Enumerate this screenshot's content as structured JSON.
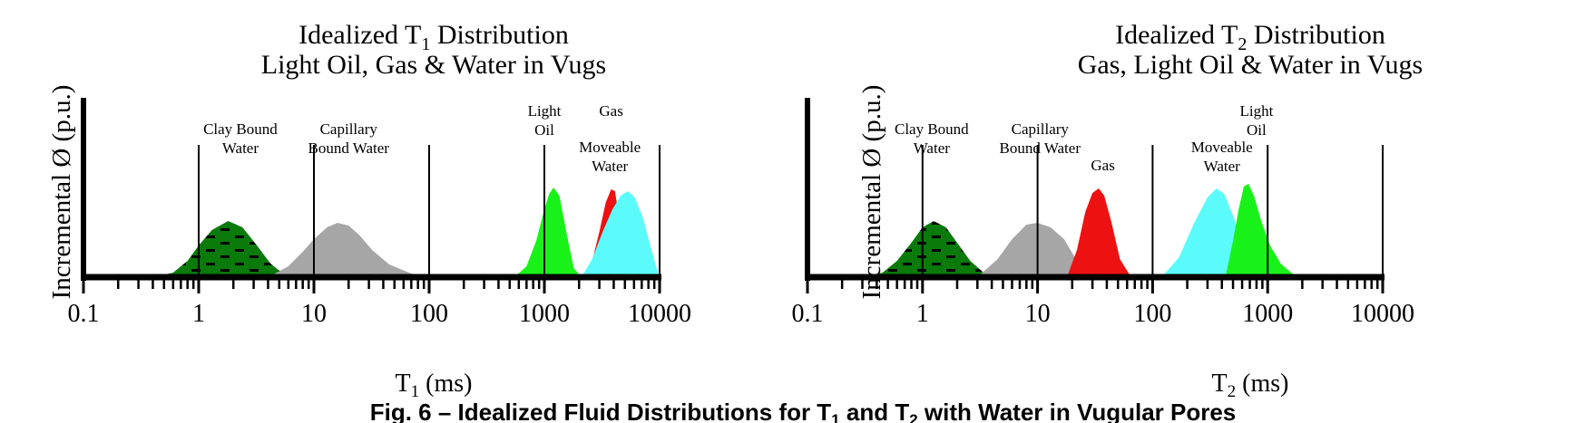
{
  "caption": {
    "prefix": "Fig. 6 – Idealized Fluid Distributions for T",
    "sub1": "1",
    "mid": " and T",
    "sub2": "2",
    "suffix": " with Water in Vugular Pores"
  },
  "chart_data": [
    {
      "type": "area",
      "title": {
        "line1_pre": "Idealized T",
        "line1_sub": "1",
        "line1_post": " Distribution",
        "line2": "Light Oil,  Gas  & Water in Vugs"
      },
      "ylabel": "Incremental Ø (p.u.)",
      "xlabel": {
        "pre": "T",
        "sub": "1",
        "post": "  (ms)"
      },
      "xscale": "log",
      "xlim": [
        0.1,
        10000
      ],
      "ylim": [
        0,
        1
      ],
      "x_ticks": [
        0.1,
        1,
        10,
        100,
        1000,
        10000
      ],
      "x_tick_labels": [
        "0.1",
        "1",
        "10",
        "100",
        "1000",
        "10000"
      ],
      "cutoffs": [
        1,
        10,
        100,
        1000,
        10000
      ],
      "series": [
        {
          "name": "Clay Bound Water",
          "color": "#0a7a0a",
          "pattern": "dashes",
          "x": [
            0.4,
            0.6,
            0.8,
            1,
            1.3,
            1.8,
            2.4,
            3.2,
            4.2,
            5.5,
            7
          ],
          "y": [
            0,
            0.05,
            0.18,
            0.35,
            0.52,
            0.62,
            0.55,
            0.35,
            0.15,
            0.03,
            0
          ]
        },
        {
          "name": "Capillary Bound Water",
          "color": "#a6a6a6",
          "x": [
            4,
            6,
            8,
            10,
            13,
            16,
            20,
            25,
            32,
            45,
            70,
            100
          ],
          "y": [
            0,
            0.12,
            0.28,
            0.42,
            0.55,
            0.6,
            0.57,
            0.46,
            0.3,
            0.14,
            0.04,
            0
          ]
        },
        {
          "name": "Light Oil",
          "color": "#19f219",
          "x": [
            550,
            700,
            850,
            1000,
            1100,
            1200,
            1350,
            1550,
            1800,
            2100
          ],
          "y": [
            0,
            0.12,
            0.4,
            0.75,
            0.92,
            0.99,
            0.9,
            0.5,
            0.1,
            0
          ]
        },
        {
          "name": "Gas",
          "color": "#ee1111",
          "x": [
            2300,
            2600,
            3000,
            3400,
            3800,
            4100,
            4400,
            4800,
            5200
          ],
          "y": [
            0,
            0.18,
            0.5,
            0.82,
            0.97,
            0.95,
            0.7,
            0.3,
            0
          ]
        },
        {
          "name": "Moveable Water",
          "color": "#5cfbfb",
          "x": [
            2100,
            2600,
            3200,
            3900,
            4600,
            5300,
            6100,
            7200,
            8300,
            9400,
            10000
          ],
          "y": [
            0,
            0.2,
            0.5,
            0.75,
            0.9,
            0.95,
            0.88,
            0.65,
            0.35,
            0.1,
            0
          ]
        }
      ],
      "annotations": [
        {
          "lines": [
            "Clay Bound",
            "Water"
          ],
          "x": 2.3,
          "level": 1
        },
        {
          "lines": [
            "Capillary",
            "Bound Water"
          ],
          "x": 20,
          "level": 1
        },
        {
          "lines": [
            "Light",
            "Oil"
          ],
          "x": 1000,
          "level": 0
        },
        {
          "lines": [
            "Gas"
          ],
          "x": 3800,
          "level": 0
        },
        {
          "lines": [
            "Moveable",
            "Water"
          ],
          "x": 3700,
          "level": 2
        }
      ]
    },
    {
      "type": "area",
      "title": {
        "line1_pre": "Idealized T",
        "line1_sub": "2",
        "line1_post": " Distribution",
        "line2": "Gas,  Light Oil  &  Water in Vugs"
      },
      "ylabel": "Incremental Ø (p.u.)",
      "xlabel": {
        "pre": "T",
        "sub": "2",
        "post": "  (ms)"
      },
      "xscale": "log",
      "xlim": [
        0.1,
        10000
      ],
      "ylim": [
        0,
        1
      ],
      "x_ticks": [
        0.1,
        1,
        10,
        100,
        1000,
        10000
      ],
      "x_tick_labels": [
        "0.1",
        "1",
        "10",
        "100",
        "1000",
        "10000"
      ],
      "cutoffs": [
        1,
        10,
        100,
        1000,
        10000
      ],
      "series": [
        {
          "name": "Clay Bound Water",
          "color": "#0a7a0a",
          "pattern": "dashes",
          "x": [
            0.3,
            0.45,
            0.6,
            0.8,
            1,
            1.25,
            1.6,
            2,
            2.6,
            3.4,
            4.5,
            5.5
          ],
          "y": [
            0,
            0.05,
            0.18,
            0.38,
            0.55,
            0.62,
            0.55,
            0.38,
            0.18,
            0.05,
            0,
            0
          ]
        },
        {
          "name": "Capillary Bound Water",
          "color": "#a6a6a6",
          "x": [
            3,
            4.5,
            6,
            8,
            10,
            13,
            17,
            22,
            28
          ],
          "y": [
            0,
            0.2,
            0.42,
            0.58,
            0.6,
            0.55,
            0.42,
            0.18,
            0
          ]
        },
        {
          "name": "Gas",
          "color": "#ee1111",
          "x": [
            18,
            22,
            26,
            30,
            34,
            38,
            44,
            52,
            65
          ],
          "y": [
            0,
            0.3,
            0.72,
            0.93,
            0.98,
            0.9,
            0.6,
            0.2,
            0
          ]
        },
        {
          "name": "Moveable Water",
          "color": "#5cfbfb",
          "x": [
            120,
            170,
            230,
            300,
            360,
            420,
            500,
            620,
            760,
            900
          ],
          "y": [
            0,
            0.22,
            0.6,
            0.88,
            0.98,
            0.92,
            0.68,
            0.32,
            0.05,
            0
          ]
        },
        {
          "name": "Light Oil",
          "color": "#19f219",
          "x": [
            430,
            500,
            560,
            620,
            680,
            760,
            880,
            1050,
            1300,
            1600,
            1850
          ],
          "y": [
            0,
            0.4,
            0.75,
            1,
            1.03,
            0.9,
            0.62,
            0.35,
            0.15,
            0.05,
            0
          ]
        }
      ],
      "annotations": [
        {
          "lines": [
            "Clay Bound",
            "Water"
          ],
          "x": 1.2,
          "level": 1
        },
        {
          "lines": [
            "Capillary",
            "Bound Water"
          ],
          "x": 10.5,
          "level": 1
        },
        {
          "lines": [
            "Gas"
          ],
          "x": 37,
          "level": 3
        },
        {
          "lines": [
            "Light",
            "Oil"
          ],
          "x": 800,
          "level": 0
        },
        {
          "lines": [
            "Moveable",
            "Water"
          ],
          "x": 400,
          "level": 2
        }
      ]
    }
  ]
}
